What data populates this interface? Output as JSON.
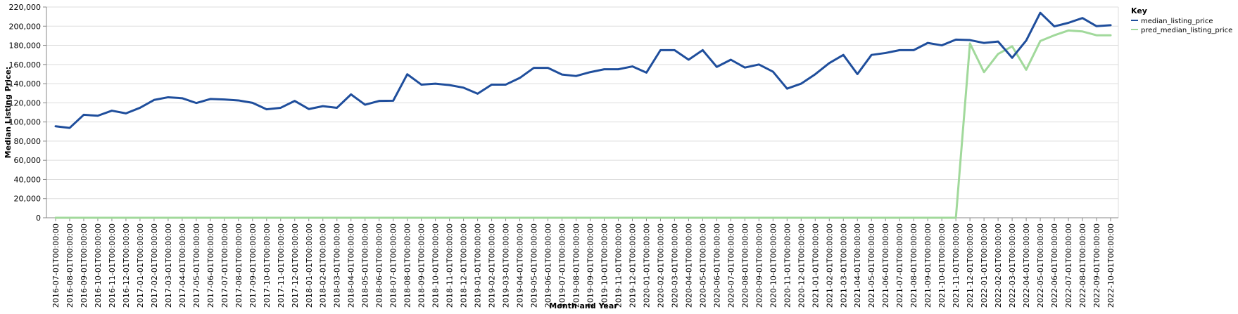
{
  "chart_data": {
    "type": "line",
    "xlabel": "Month and Year",
    "ylabel": "Median Listing Price:",
    "ylim": [
      0,
      220000
    ],
    "yticks": [
      0,
      20000,
      40000,
      60000,
      80000,
      100000,
      120000,
      140000,
      160000,
      180000,
      200000,
      220000
    ],
    "ytick_labels": [
      "0",
      "20,000",
      "40,000",
      "60,000",
      "80,000",
      "100,000",
      "120,000",
      "140,000",
      "160,000",
      "180,000",
      "200,000",
      "220,000"
    ],
    "grid": true,
    "legend": {
      "title": "Key",
      "placement": "top-right"
    },
    "x": [
      "2016-07-01T00:00:00",
      "2016-08-01T00:00:00",
      "2016-09-01T00:00:00",
      "2016-10-01T00:00:00",
      "2016-11-01T00:00:00",
      "2016-12-01T00:00:00",
      "2017-01-01T00:00:00",
      "2017-02-01T00:00:00",
      "2017-03-01T00:00:00",
      "2017-04-01T00:00:00",
      "2017-05-01T00:00:00",
      "2017-06-01T00:00:00",
      "2017-07-01T00:00:00",
      "2017-08-01T00:00:00",
      "2017-09-01T00:00:00",
      "2017-10-01T00:00:00",
      "2017-11-01T00:00:00",
      "2017-12-01T00:00:00",
      "2018-01-01T00:00:00",
      "2018-02-01T00:00:00",
      "2018-03-01T00:00:00",
      "2018-04-01T00:00:00",
      "2018-05-01T00:00:00",
      "2018-06-01T00:00:00",
      "2018-07-01T00:00:00",
      "2018-08-01T00:00:00",
      "2018-09-01T00:00:00",
      "2018-10-01T00:00:00",
      "2018-11-01T00:00:00",
      "2018-12-01T00:00:00",
      "2019-01-01T00:00:00",
      "2019-02-01T00:00:00",
      "2019-03-01T00:00:00",
      "2019-04-01T00:00:00",
      "2019-05-01T00:00:00",
      "2019-06-01T00:00:00",
      "2019-07-01T00:00:00",
      "2019-08-01T00:00:00",
      "2019-09-01T00:00:00",
      "2019-10-01T00:00:00",
      "2019-11-01T00:00:00",
      "2019-12-01T00:00:00",
      "2020-01-01T00:00:00",
      "2020-02-01T00:00:00",
      "2020-03-01T00:00:00",
      "2020-04-01T00:00:00",
      "2020-05-01T00:00:00",
      "2020-06-01T00:00:00",
      "2020-07-01T00:00:00",
      "2020-08-01T00:00:00",
      "2020-09-01T00:00:00",
      "2020-10-01T00:00:00",
      "2020-11-01T00:00:00",
      "2020-12-01T00:00:00",
      "2021-01-01T00:00:00",
      "2021-02-01T00:00:00",
      "2021-03-01T00:00:00",
      "2021-04-01T00:00:00",
      "2021-05-01T00:00:00",
      "2021-06-01T00:00:00",
      "2021-07-01T00:00:00",
      "2021-08-01T00:00:00",
      "2021-09-01T00:00:00",
      "2021-10-01T00:00:00",
      "2021-11-01T00:00:00",
      "2021-12-01T00:00:00",
      "2022-01-01T00:00:00",
      "2022-02-01T00:00:00",
      "2022-03-01T00:00:00",
      "2022-04-01T00:00:00",
      "2022-05-01T00:00:00",
      "2022-06-01T00:00:00",
      "2022-07-01T00:00:00",
      "2022-08-01T00:00:00",
      "2022-09-01T00:00:00",
      "2022-10-01T00:00:00"
    ],
    "series": [
      {
        "name": "median_listing_price",
        "color": "#1f4e9c",
        "values": [
          95500,
          93800,
          107500,
          106500,
          111800,
          109000,
          114800,
          123000,
          125800,
          124800,
          119800,
          124000,
          123500,
          122500,
          120000,
          113200,
          114800,
          122000,
          113500,
          116500,
          114800,
          128800,
          118000,
          122000,
          122200,
          149800,
          139000,
          140000,
          138500,
          135800,
          129500,
          139000,
          139000,
          146000,
          156500,
          156500,
          149500,
          148000,
          152000,
          155000,
          155000,
          158000,
          151500,
          175000,
          175000,
          165000,
          175000,
          157500,
          165000,
          156800,
          160000,
          152500,
          134800,
          140000,
          149800,
          161500,
          170000,
          150000,
          170000,
          172000,
          175000,
          175000,
          182500,
          180000,
          186000,
          185500,
          182500,
          184000,
          167000,
          185000,
          214000,
          199800,
          203500,
          208500,
          200000,
          201000
        ]
      },
      {
        "name": "pred_median_listing_price",
        "color": "#a1d99b",
        "values": [
          0,
          0,
          0,
          0,
          0,
          0,
          0,
          0,
          0,
          0,
          0,
          0,
          0,
          0,
          0,
          0,
          0,
          0,
          0,
          0,
          0,
          0,
          0,
          0,
          0,
          0,
          0,
          0,
          0,
          0,
          0,
          0,
          0,
          0,
          0,
          0,
          0,
          0,
          0,
          0,
          0,
          0,
          0,
          0,
          0,
          0,
          0,
          0,
          0,
          0,
          0,
          0,
          0,
          0,
          0,
          0,
          0,
          0,
          0,
          0,
          0,
          0,
          0,
          0,
          0,
          182000,
          152000,
          171000,
          179000,
          154500,
          184500,
          190500,
          195500,
          194500,
          190500,
          190500
        ]
      }
    ]
  }
}
